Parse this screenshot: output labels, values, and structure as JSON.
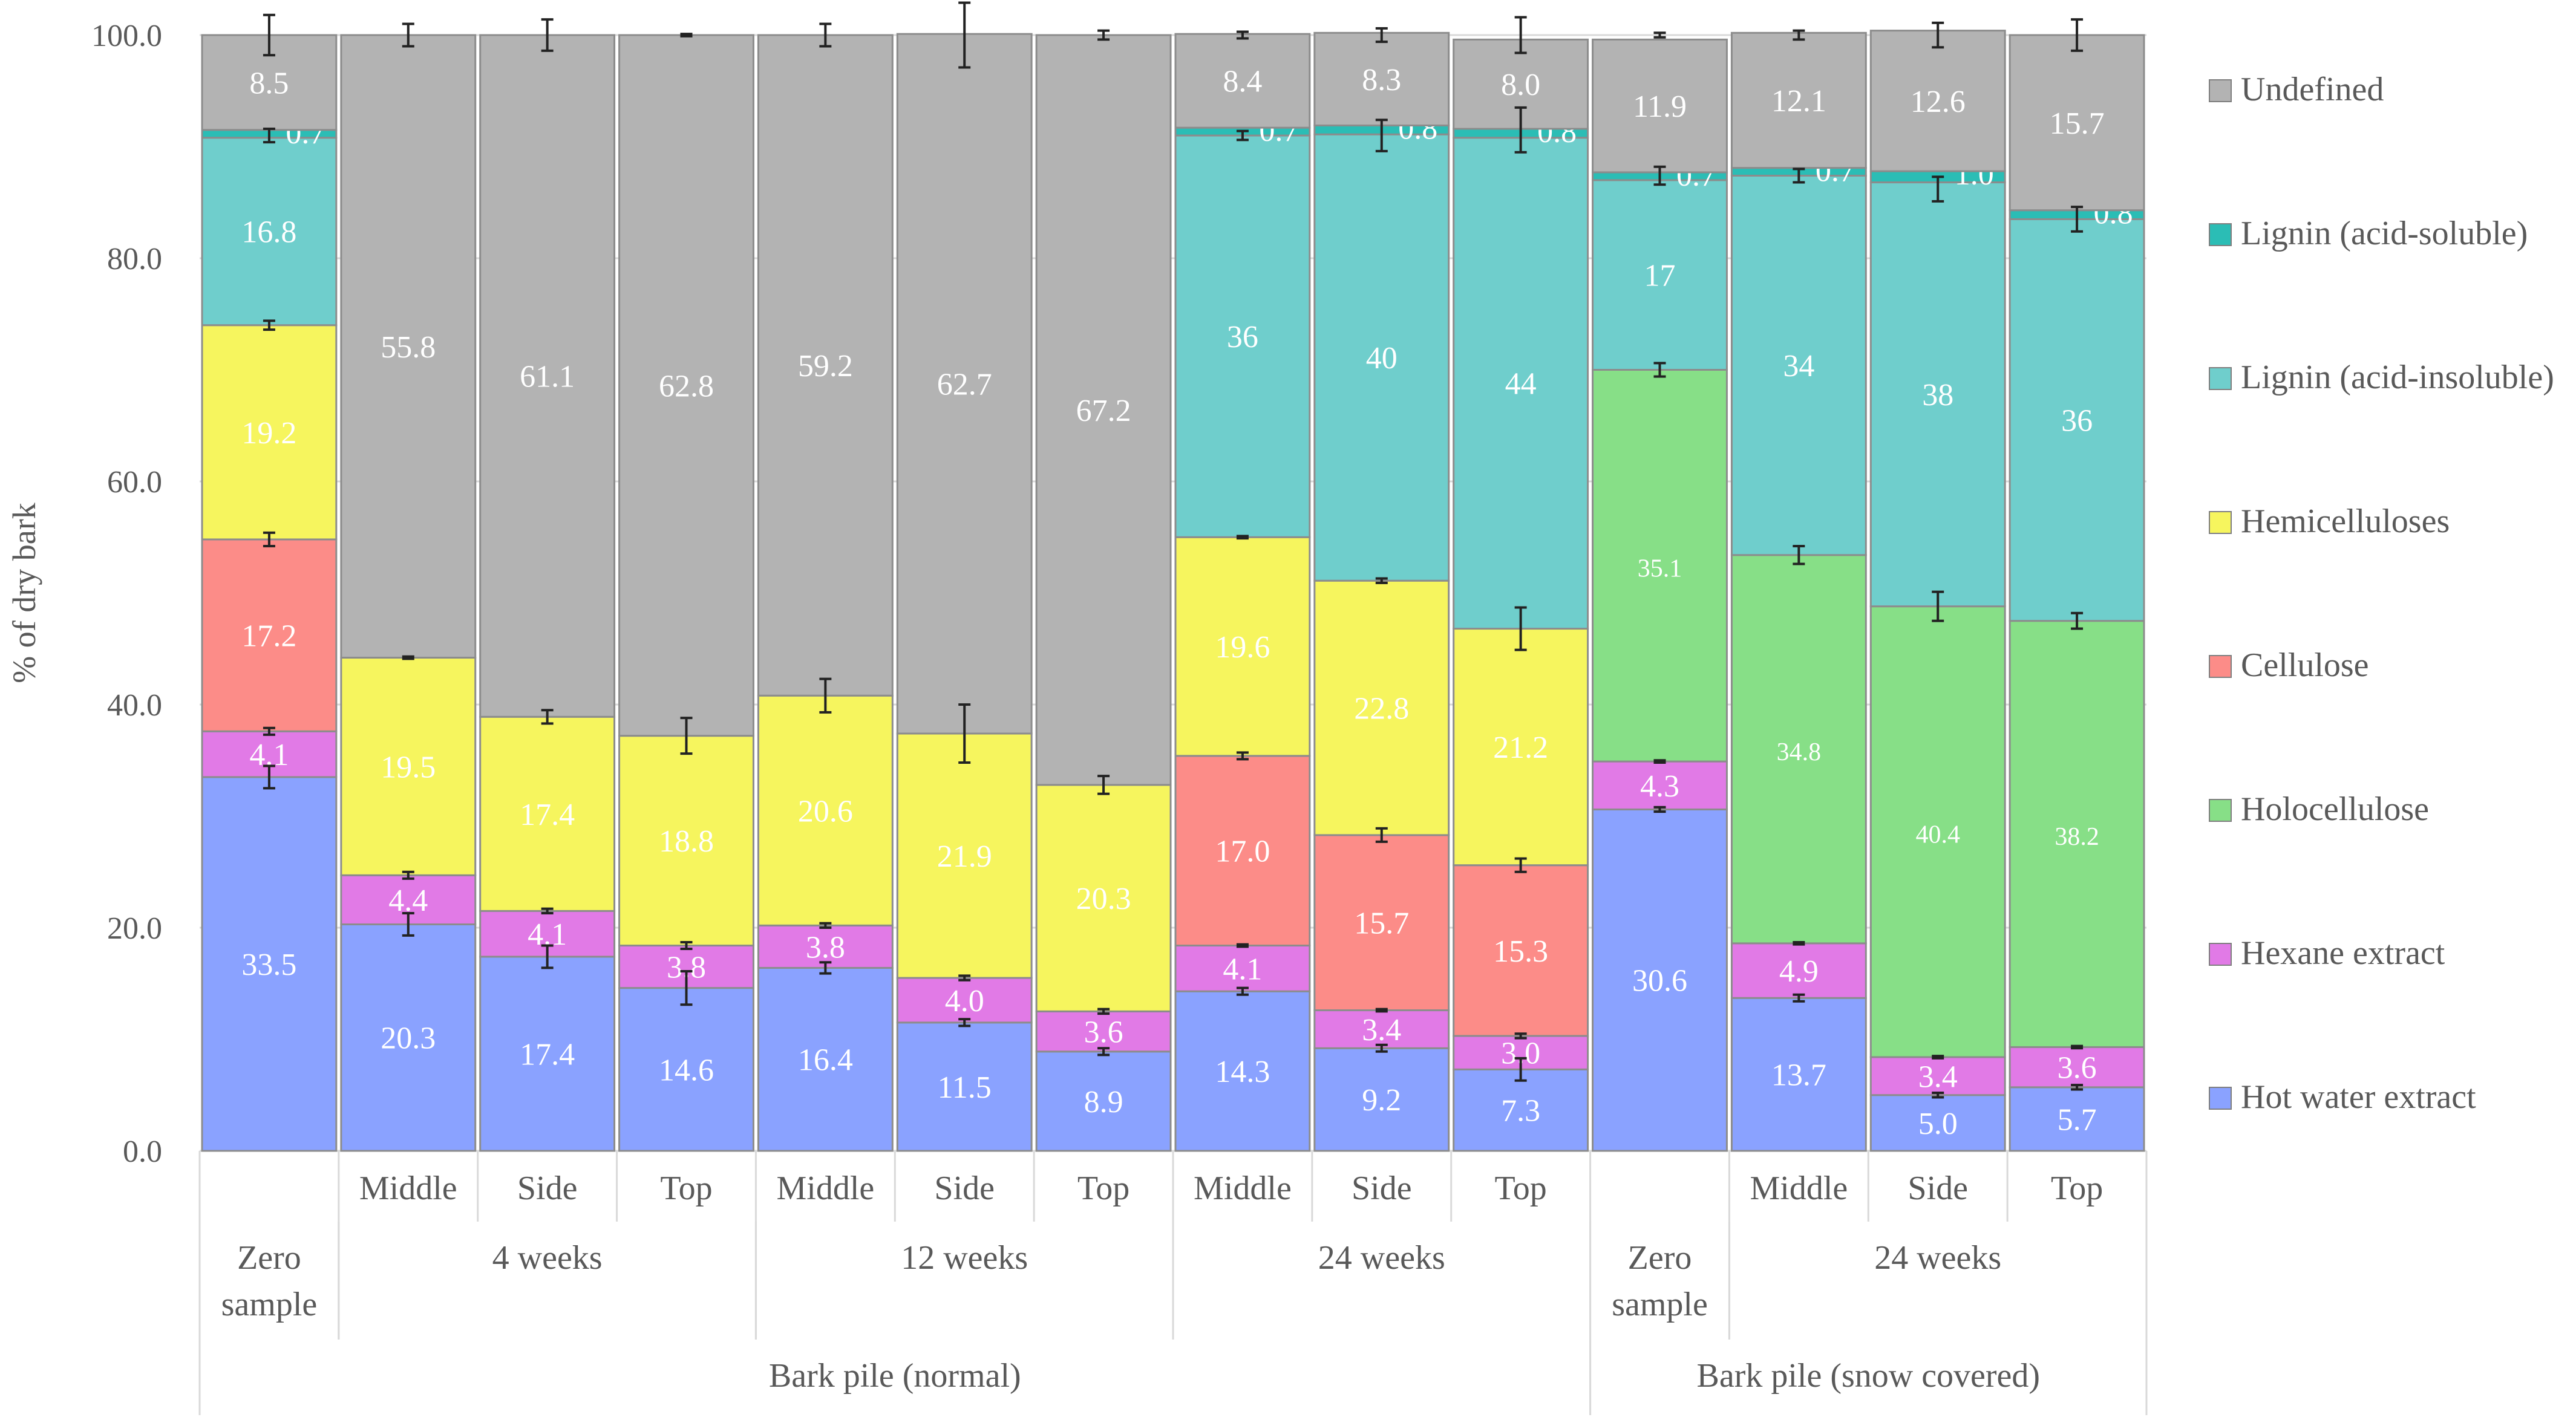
{
  "chart_data": {
    "type": "stacked-bar",
    "title": "",
    "xlabel": "",
    "ylabel": "% of dry bark",
    "ylim": [
      0,
      100
    ],
    "y_ticks": [
      "0.0",
      "20.0",
      "40.0",
      "60.0",
      "80.0",
      "100.0"
    ],
    "grid": true,
    "legend_position": "right",
    "categories": [
      "Zero sample",
      "4 weeks Middle",
      "4 weeks Side",
      "4 weeks Top",
      "12 weeks Middle",
      "12 weeks Side",
      "12 weeks Top",
      "24 weeks Middle",
      "24 weeks Side",
      "24 weeks Top",
      "Zero sample (snow)",
      "24 weeks Middle (snow)",
      "24 weeks Side (snow)",
      "24 weeks Top (snow)"
    ],
    "series": [
      {
        "name": "Hot water extract",
        "color": "#8aa2ff",
        "values": [
          33.5,
          20.3,
          17.4,
          14.6,
          16.4,
          11.5,
          8.9,
          14.3,
          9.2,
          7.3,
          30.6,
          13.7,
          5.0,
          5.7
        ],
        "labels": [
          "33.5",
          "20.3",
          "17.4",
          "14.6",
          "16.4",
          "11.5",
          "8.9",
          "14.3",
          "9.2",
          "7.3",
          "30.6",
          "13.7",
          "5.0",
          "5.7"
        ]
      },
      {
        "name": "Hexane extract",
        "color": "#e17ae6",
        "values": [
          4.1,
          4.4,
          4.1,
          3.8,
          3.8,
          4.0,
          3.6,
          4.1,
          3.4,
          3.0,
          4.3,
          4.9,
          3.4,
          3.6
        ],
        "labels": [
          "4.1",
          "4.4",
          "4.1",
          "3.8",
          "3.8",
          "4.0",
          "3.6",
          "4.1",
          "3.4",
          "3.0",
          "4.3",
          "4.9",
          "3.4",
          "3.6"
        ]
      },
      {
        "name": "Holocellulose",
        "color": "#87df87",
        "values": [
          0,
          0,
          0,
          0,
          0,
          0,
          0,
          0,
          0,
          0,
          35.1,
          34.8,
          40.4,
          38.2
        ],
        "labels": [
          "",
          "",
          "",
          "",
          "",
          "",
          "",
          "",
          "",
          "",
          "35.1",
          "34.8",
          "40.4",
          "38.2"
        ]
      },
      {
        "name": "Cellulose",
        "color": "#fc8c88",
        "values": [
          17.2,
          0,
          0,
          0,
          0,
          0,
          0,
          17.0,
          15.7,
          15.3,
          0,
          0,
          0,
          0
        ],
        "labels": [
          "17.2",
          "",
          "",
          "",
          "",
          "",
          "",
          "17.0",
          "15.7",
          "15.3",
          "",
          "",
          "",
          ""
        ]
      },
      {
        "name": "Hemicelluloses",
        "color": "#f6f55e",
        "values": [
          19.2,
          19.5,
          17.4,
          18.8,
          20.6,
          21.9,
          20.3,
          19.6,
          22.8,
          21.2,
          0,
          0,
          0,
          0
        ],
        "labels": [
          "19.2",
          "19.5",
          "17.4",
          "18.8",
          "20.6",
          "21.9",
          "20.3",
          "19.6",
          "22.8",
          "21.2",
          "",
          "",
          "",
          ""
        ]
      },
      {
        "name": "Lignin (acid-insoluble)",
        "color": "#6fcecc",
        "values": [
          16.8,
          0,
          0,
          0,
          0,
          0,
          0,
          36,
          40,
          44,
          17,
          34,
          38,
          36
        ],
        "labels": [
          "16.8",
          "",
          "",
          "",
          "",
          "",
          "",
          "36",
          "40",
          "44",
          "17",
          "34",
          "38",
          "36"
        ]
      },
      {
        "name": "Lignin (acid-soluble)",
        "color": "#2bbdb5",
        "values": [
          0.7,
          0,
          0,
          0,
          0,
          0,
          0,
          0.7,
          0.8,
          0.8,
          0.7,
          0.7,
          1.0,
          0.8
        ],
        "labels": [
          "0.7",
          "",
          "",
          "",
          "",
          "",
          "",
          "0.7",
          "0.8",
          "0.8",
          "0.7",
          "0.7",
          "1.0",
          "0.8"
        ]
      },
      {
        "name": "Undefined",
        "color": "#b3b3b3",
        "values": [
          8.5,
          55.8,
          61.1,
          62.8,
          59.2,
          62.7,
          67.2,
          8.4,
          8.3,
          8.0,
          11.9,
          12.1,
          12.6,
          15.7
        ],
        "labels": [
          "8.5",
          "55.8",
          "61.1",
          "62.8",
          "59.2",
          "62.7",
          "67.2",
          "8.4",
          "8.3",
          "8.0",
          "11.9",
          "12.1",
          "12.6",
          "15.7"
        ]
      }
    ],
    "error_bars": [
      [
        [
          33.5,
          1.0
        ],
        [
          37.6,
          0.3
        ],
        [
          54.8,
          0.6
        ],
        [
          74.0,
          0.4
        ],
        [
          91.0,
          0.6
        ],
        [
          100.0,
          1.8
        ]
      ],
      [
        [
          20.3,
          1.0
        ],
        [
          24.7,
          0.3
        ],
        [
          44.2,
          0.1
        ],
        [
          100.0,
          1.0
        ]
      ],
      [
        [
          17.4,
          1.0
        ],
        [
          21.5,
          0.2
        ],
        [
          38.9,
          0.6
        ],
        [
          100.0,
          1.4
        ]
      ],
      [
        [
          14.6,
          1.5
        ],
        [
          18.4,
          0.3
        ],
        [
          37.2,
          1.6
        ],
        [
          100.0,
          0.1
        ]
      ],
      [
        [
          16.4,
          0.5
        ],
        [
          20.2,
          0.2
        ],
        [
          40.8,
          1.5
        ],
        [
          100.0,
          1.0
        ]
      ],
      [
        [
          11.5,
          0.3
        ],
        [
          15.5,
          0.2
        ],
        [
          37.4,
          2.6
        ],
        [
          100.0,
          2.9
        ]
      ],
      [
        [
          8.9,
          0.3
        ],
        [
          12.5,
          0.2
        ],
        [
          32.8,
          0.8
        ],
        [
          100.0,
          0.4
        ]
      ],
      [
        [
          14.3,
          0.3
        ],
        [
          18.4,
          0.1
        ],
        [
          35.4,
          0.3
        ],
        [
          55.0,
          0.1
        ],
        [
          91.0,
          0.4
        ],
        [
          100.0,
          0.3
        ]
      ],
      [
        [
          9.2,
          0.3
        ],
        [
          12.6,
          0.1
        ],
        [
          28.3,
          0.6
        ],
        [
          51.1,
          0.2
        ],
        [
          91.0,
          1.4
        ],
        [
          100.0,
          0.6
        ]
      ],
      [
        [
          7.3,
          1.0
        ],
        [
          10.3,
          0.2
        ],
        [
          25.6,
          0.6
        ],
        [
          46.8,
          1.9
        ],
        [
          91.5,
          2.0
        ],
        [
          100.0,
          1.6
        ]
      ],
      [
        [
          30.6,
          0.2
        ],
        [
          34.9,
          0.1
        ],
        [
          70.0,
          0.6
        ],
        [
          87.4,
          0.8
        ],
        [
          100.0,
          0.2
        ]
      ],
      [
        [
          13.7,
          0.3
        ],
        [
          18.6,
          0.1
        ],
        [
          53.4,
          0.8
        ],
        [
          87.4,
          0.6
        ],
        [
          100.0,
          0.4
        ]
      ],
      [
        [
          5.0,
          0.2
        ],
        [
          8.4,
          0.1
        ],
        [
          48.8,
          1.3
        ],
        [
          86.2,
          1.1
        ],
        [
          100.0,
          1.1
        ]
      ],
      [
        [
          5.7,
          0.2
        ],
        [
          9.3,
          0.1
        ],
        [
          47.5,
          0.7
        ],
        [
          83.5,
          1.1
        ],
        [
          100.0,
          1.4
        ]
      ]
    ],
    "x_axis_labels": {
      "row1": [
        {
          "text": "Middle",
          "bar": 1
        },
        {
          "text": "Side",
          "bar": 2
        },
        {
          "text": "Top",
          "bar": 3
        },
        {
          "text": "Middle",
          "bar": 4
        },
        {
          "text": "Side",
          "bar": 5
        },
        {
          "text": "Top",
          "bar": 6
        },
        {
          "text": "Middle",
          "bar": 7
        },
        {
          "text": "Side",
          "bar": 8
        },
        {
          "text": "Top",
          "bar": 9
        },
        {
          "text": "Middle",
          "bar": 11
        },
        {
          "text": "Side",
          "bar": 12
        },
        {
          "text": "Top",
          "bar": 13
        }
      ],
      "row2": [
        {
          "lines": [
            "Zero",
            "sample"
          ],
          "from": 0,
          "to": 0
        },
        {
          "lines": [
            "4 weeks"
          ],
          "from": 1,
          "to": 3
        },
        {
          "lines": [
            "12 weeks"
          ],
          "from": 4,
          "to": 6
        },
        {
          "lines": [
            "24 weeks"
          ],
          "from": 7,
          "to": 9
        },
        {
          "lines": [
            "Zero",
            "sample"
          ],
          "from": 10,
          "to": 10
        },
        {
          "lines": [
            "24 weeks"
          ],
          "from": 11,
          "to": 13
        }
      ],
      "row3": [
        {
          "text": "Bark pile (normal)",
          "from": 0,
          "to": 9
        },
        {
          "text": "Bark pile (snow covered)",
          "from": 10,
          "to": 13
        }
      ]
    },
    "legend_order": [
      "Undefined",
      "Lignin (acid-soluble)",
      "Lignin (acid-insoluble)",
      "Hemicelluloses",
      "Cellulose",
      "Holocellulose",
      "Hexane extract",
      "Hot water extract"
    ]
  }
}
